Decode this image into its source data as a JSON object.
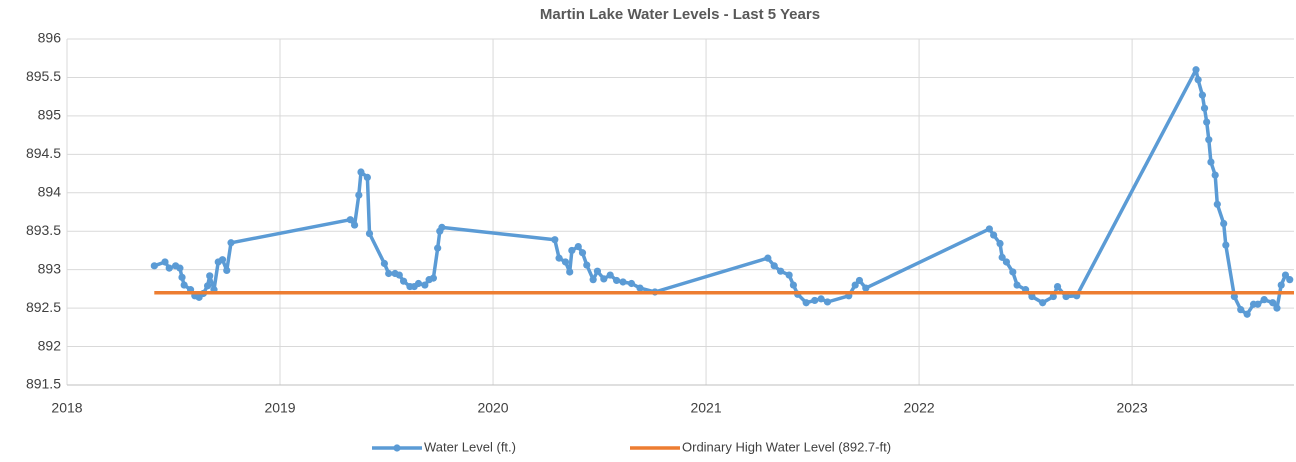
{
  "chart_data": {
    "type": "line",
    "title": "Martin Lake Water Levels - Last 5 Years",
    "xlim": [
      2018,
      2023.76
    ],
    "xticks": [
      2018,
      2019,
      2020,
      2021,
      2022,
      2023
    ],
    "ylim": [
      891.5,
      896
    ],
    "yticks": [
      891.5,
      892,
      892.5,
      893,
      893.5,
      894,
      894.5,
      895,
      895.5,
      896
    ],
    "grid": true,
    "legend": "bottom",
    "series": [
      {
        "name": "Water Level (ft.)",
        "color": "#5b9bd5",
        "marker": true,
        "x": [
          2018.41,
          2018.46,
          2018.48,
          2018.51,
          2018.53,
          2018.54,
          2018.55,
          2018.58,
          2018.6,
          2018.62,
          2018.64,
          2018.66,
          2018.67,
          2018.69,
          2018.71,
          2018.73,
          2018.75,
          2018.77,
          2019.33,
          2019.35,
          2019.37,
          2019.38,
          2019.41,
          2019.42,
          2019.49,
          2019.51,
          2019.54,
          2019.56,
          2019.58,
          2019.61,
          2019.63,
          2019.65,
          2019.68,
          2019.7,
          2019.72,
          2019.74,
          2019.75,
          2019.76,
          2020.29,
          2020.31,
          2020.34,
          2020.36,
          2020.37,
          2020.4,
          2020.42,
          2020.44,
          2020.47,
          2020.49,
          2020.52,
          2020.55,
          2020.58,
          2020.61,
          2020.65,
          2020.69,
          2020.76,
          2021.29,
          2021.32,
          2021.35,
          2021.39,
          2021.41,
          2021.43,
          2021.47,
          2021.51,
          2021.54,
          2021.57,
          2021.67,
          2021.7,
          2021.72,
          2021.75,
          2022.33,
          2022.35,
          2022.38,
          2022.39,
          2022.41,
          2022.44,
          2022.46,
          2022.5,
          2022.53,
          2022.58,
          2022.63,
          2022.65,
          2022.69,
          2022.74,
          2023.3,
          2023.31,
          2023.33,
          2023.34,
          2023.35,
          2023.36,
          2023.37,
          2023.39,
          2023.4,
          2023.43,
          2023.44,
          2023.48,
          2023.51,
          2023.54,
          2023.57,
          2023.59,
          2023.62,
          2023.66,
          2023.68,
          2023.7,
          2023.72,
          2023.74
        ],
        "values": [
          893.05,
          893.1,
          893.02,
          893.05,
          893.02,
          892.9,
          892.8,
          892.74,
          892.66,
          892.64,
          892.69,
          892.79,
          892.92,
          892.74,
          893.1,
          893.13,
          892.99,
          893.35,
          893.65,
          893.58,
          893.97,
          894.27,
          894.2,
          893.47,
          893.08,
          892.95,
          892.95,
          892.93,
          892.85,
          892.78,
          892.78,
          892.82,
          892.8,
          892.87,
          892.89,
          893.28,
          893.5,
          893.55,
          893.39,
          893.15,
          893.1,
          892.97,
          893.25,
          893.3,
          893.22,
          893.06,
          892.87,
          892.98,
          892.88,
          892.93,
          892.86,
          892.84,
          892.82,
          892.76,
          892.71,
          893.15,
          893.05,
          892.98,
          892.93,
          892.8,
          892.68,
          892.57,
          892.6,
          892.62,
          892.58,
          892.66,
          892.8,
          892.86,
          892.76,
          893.53,
          893.45,
          893.34,
          893.16,
          893.1,
          892.97,
          892.8,
          892.74,
          892.65,
          892.57,
          892.65,
          892.78,
          892.65,
          892.66,
          895.6,
          895.47,
          895.27,
          895.1,
          894.92,
          894.69,
          894.4,
          894.23,
          893.85,
          893.6,
          893.32,
          892.65,
          892.48,
          892.42,
          892.55,
          892.55,
          892.61,
          892.57,
          892.5,
          892.8,
          892.93,
          892.87
        ]
      },
      {
        "name": "Ordinary High Water Level (892.7-ft)",
        "color": "#ed7d31",
        "marker": false,
        "x": [
          2018.41,
          2023.76
        ],
        "values": [
          892.7,
          892.7
        ]
      }
    ]
  }
}
